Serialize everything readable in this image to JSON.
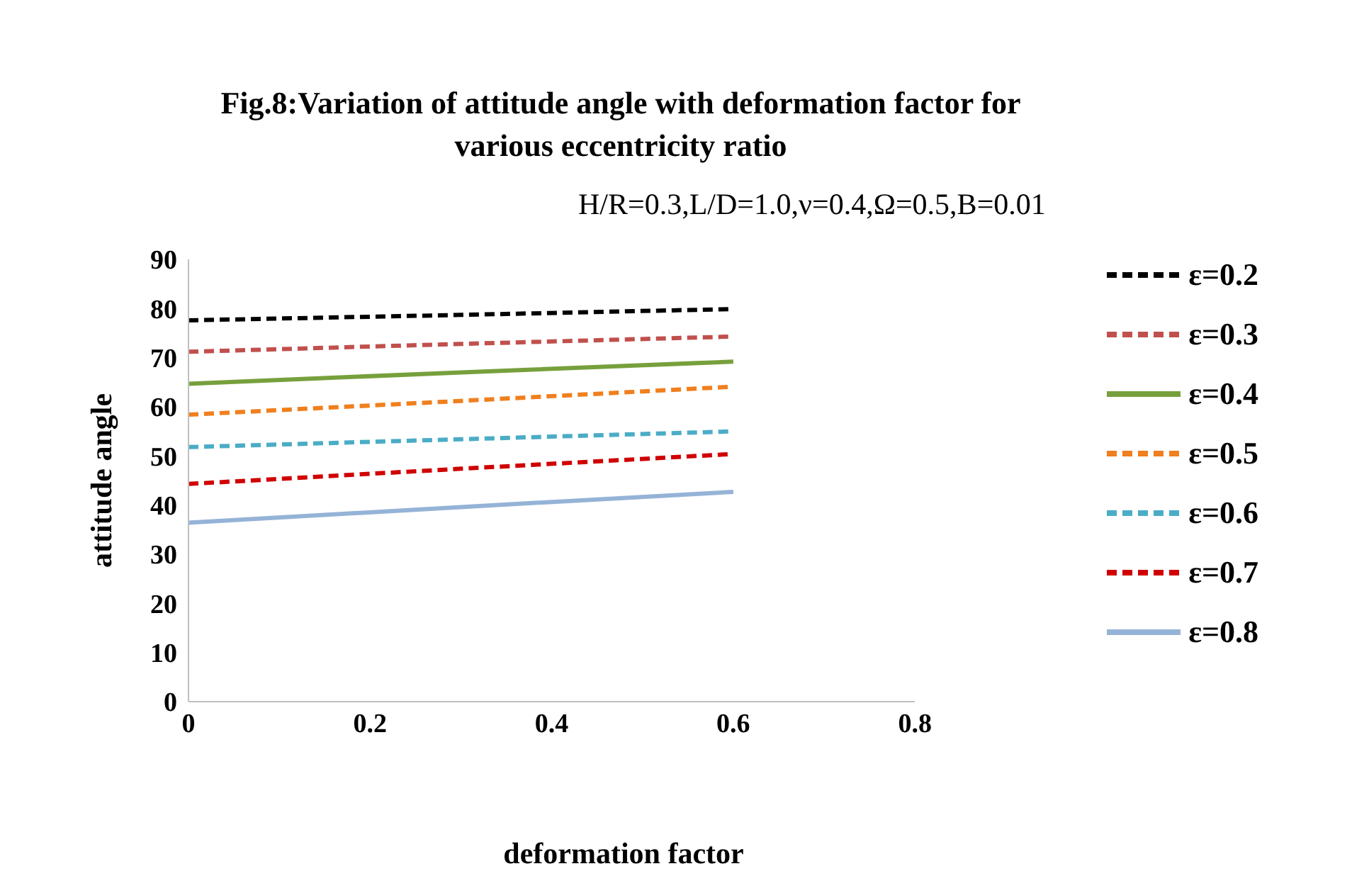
{
  "chart_data": {
    "type": "line",
    "title": "Fig.8:Variation of attitude angle with deformation factor for various eccentricity ratio",
    "subtitle": "H/R=0.3,L/D=1.0,ν=0.4,Ω=0.5,B=0.01",
    "xlabel": "deformation factor",
    "ylabel": "attitude angle",
    "x": [
      0,
      0.3,
      0.6
    ],
    "series": [
      {
        "name": "ε=0.2",
        "color": "#000000",
        "line_style": "dashed",
        "values": [
          77.6,
          78.7,
          79.9
        ]
      },
      {
        "name": "ε=0.3",
        "color": "#c0504d",
        "line_style": "dashed",
        "values": [
          71.2,
          72.8,
          74.3
        ]
      },
      {
        "name": "ε=0.4",
        "color": "#77a03c",
        "line_style": "solid",
        "values": [
          64.7,
          67.0,
          69.2
        ]
      },
      {
        "name": "ε=0.5",
        "color": "#f07f1e",
        "line_style": "dashed",
        "values": [
          58.4,
          61.2,
          64.1
        ]
      },
      {
        "name": "ε=0.6",
        "color": "#4bacc6",
        "line_style": "dashed",
        "values": [
          51.8,
          53.4,
          55.0
        ]
      },
      {
        "name": "ε=0.7",
        "color": "#d00000",
        "line_style": "dashed",
        "values": [
          44.3,
          47.4,
          50.4
        ]
      },
      {
        "name": "ε=0.8",
        "color": "#95b3d7",
        "line_style": "solid",
        "values": [
          36.4,
          39.6,
          42.7
        ]
      }
    ],
    "xlim": [
      0,
      0.8
    ],
    "xticks": [
      0,
      0.2,
      0.4,
      0.6,
      0.8
    ],
    "ylim": [
      0,
      90
    ],
    "yticks": [
      0,
      10,
      20,
      30,
      40,
      50,
      60,
      70,
      80,
      90
    ],
    "grid": false,
    "legend": "right",
    "marker": "none"
  }
}
